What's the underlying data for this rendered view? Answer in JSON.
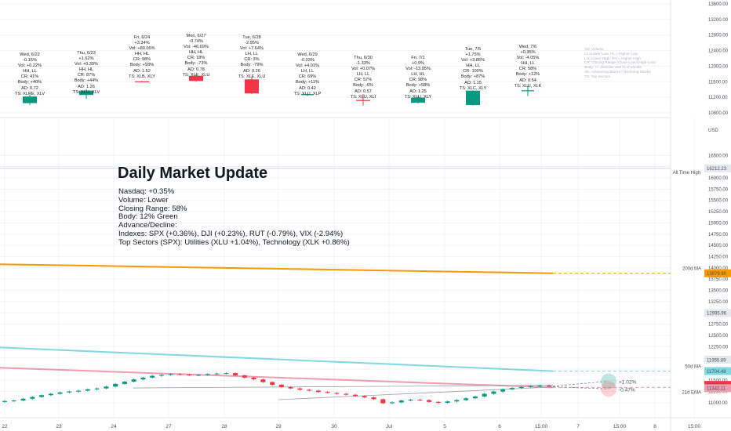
{
  "daily_cards": [
    {
      "lines": [
        "Wed, 6/22",
        "-0.15%",
        "Vol: +0.22%",
        "HH, LL",
        "CR: 41%",
        "Body: +40%",
        "AD: 0.72",
        "TS: XLRE, XLV"
      ]
    },
    {
      "lines": [
        "Thu, 6/23",
        "+1.62%",
        "Vol: +0.39%",
        "HH, HL",
        "CR: 87%",
        "Body: +44%",
        "AD: 1.26",
        "TS: XLU, XLV"
      ]
    },
    {
      "lines": [
        "Fri, 6/24",
        "+3.34%",
        "Vol: +80.06%",
        "HH, HL",
        "CR: 98%",
        "Body: +93%",
        "AD: 1.52",
        "TS: XLB, XLY"
      ]
    },
    {
      "lines": [
        "Mon, 6/27",
        "-0.74%",
        "Vol: -46.69%",
        "HH, HL",
        "CR: 18%",
        "Body: -73%",
        "AD: 0.78",
        "TS: XLE, XLU"
      ]
    },
    {
      "lines": [
        "Tue, 6/28",
        "-2.95%",
        "Vol: +7.64%",
        "LH, LL",
        "CR: 3%",
        "Body: -79%",
        "AD: 0.26",
        "TS: XLE, XLU"
      ]
    },
    {
      "lines": [
        "Wed, 6/29",
        "-0.03%",
        "Vol: +4.01%",
        "LH, LL",
        "CR: 69%",
        "Body: +11%",
        "AD: 0.42",
        "TS: XLU, XLP"
      ]
    },
    {
      "lines": [
        "Thu, 6/30",
        "-1.33%",
        "Vol: +0.07%",
        "LH, LL",
        "CR: 57%",
        "Body: -6%",
        "AD: 0.57",
        "TS: XLU, XLI"
      ]
    },
    {
      "lines": [
        "Fri, 7/1",
        "+0.9%",
        "Vol: -13.95%",
        "LH, HL",
        "CR: 98%",
        "Body: +58%",
        "AD: 1.25",
        "TS: XLU, XLY"
      ]
    },
    {
      "lines": [
        "Tue, 7/5",
        "+1.75%",
        "Vol: +3.86%",
        "HH, LL",
        "CR: 100%",
        "Body: +87%",
        "AD: 1.15",
        "TS: XLC, XLY"
      ]
    },
    {
      "lines": [
        "Wed, 7/6",
        "+0.35%",
        "Vol: -4.05%",
        "HH, LL",
        "CR: 58%",
        "Body: +12%",
        "AD: 0.54",
        "TS: XLU, XLK"
      ]
    }
  ],
  "legend": [
    "Vol: Volume",
    "LL=Lower Low, HL = Higher Low",
    "LH=Lower High, HH = Higher High",
    "CR: Closing Range (Close-Low)/(High-Low)",
    "Body: +/- direction and % of candle",
    "AD: Advancing Stocks / Declining Stocks",
    "TS: Top Sectors"
  ],
  "update": {
    "title": "Daily Market Update",
    "lines": [
      "Nasdaq: +0.35%",
      "Volume: Lower",
      "Closing Range: 58%",
      "Body: 12% Green",
      "Advance/Decline:",
      "Indexes: SPX (+0.36%), DJI (+0.23%), RUT (-0.79%), VIX (-2.94%)",
      "Top Sectors (SPX): Utilities (XLU +1.04%), Technology (XLK +0.86%)"
    ]
  },
  "chart_data": {
    "type": "candlestick",
    "top_panel": {
      "yaxis_ticks": [
        10800,
        11200,
        11600,
        12000,
        12400,
        12800,
        13200,
        13600
      ],
      "candles": [
        {
          "date": "6/22",
          "open": 11050,
          "high": 11270,
          "low": 11000,
          "close": 11220
        },
        {
          "date": "6/23",
          "open": 11260,
          "high": 11410,
          "low": 11160,
          "close": 11370
        },
        {
          "date": "6/24",
          "open": 11610,
          "high": 11620,
          "low": 11580,
          "close": 11605
        },
        {
          "date": "6/27",
          "open": 11750,
          "high": 11790,
          "low": 11600,
          "close": 11620
        },
        {
          "date": "6/28",
          "open": 11660,
          "high": 11720,
          "low": 11280,
          "close": 11300
        },
        {
          "date": "6/29",
          "open": 11270,
          "high": 11300,
          "low": 11230,
          "close": 11280
        },
        {
          "date": "6/30",
          "open": 11130,
          "high": 11280,
          "low": 10990,
          "close": 11120
        },
        {
          "date": "7/1",
          "open": 11060,
          "high": 11230,
          "low": 11040,
          "close": 11190
        },
        {
          "date": "7/5",
          "open": 11000,
          "high": 11380,
          "low": 10990,
          "close": 11370
        },
        {
          "date": "7/6",
          "open": 11370,
          "high": 11510,
          "low": 11230,
          "close": 11380
        }
      ]
    },
    "main_panel": {
      "yaxis_unit": "USD",
      "yaxis_ticks": [
        11000,
        11250,
        11500,
        11750,
        12000,
        12250,
        12500,
        12750,
        13000,
        13250,
        13500,
        13750,
        14000,
        14250,
        14500,
        14750,
        15000,
        15250,
        15500,
        15750,
        16000,
        16250,
        16500
      ],
      "x_ticks": [
        "22",
        "23",
        "24",
        "27",
        "28",
        "29",
        "30",
        "Jul",
        "5",
        "6",
        "15:00",
        "7",
        "15:00",
        "8",
        "15:00"
      ],
      "labels": {
        "all_time_high": "All Time High",
        "ma200": "200d MA",
        "ma50": "50d MA",
        "ema21": "21d EMA"
      },
      "price_labels": {
        "ath": "16212.23",
        "ma200": "13879.90",
        "p1": "12995.96",
        "p2": "11955.89",
        "ma50": "11704.48",
        "last": "11361.86",
        "ema21": "11342.11"
      },
      "ath": 16212.23,
      "ma200": [
        14080,
        13880
      ],
      "ma50": [
        12230,
        11704.48
      ],
      "ema21": [
        11780,
        11342.11
      ],
      "price_series": [
        11040,
        11050,
        11090,
        11130,
        11170,
        11200,
        11230,
        11250,
        11270,
        11300,
        11320,
        11360,
        11420,
        11470,
        11520,
        11560,
        11600,
        11620,
        11640,
        11630,
        11610,
        11620,
        11640,
        11650,
        11660,
        11610,
        11560,
        11520,
        11460,
        11400,
        11350,
        11320,
        11290,
        11270,
        11240,
        11220,
        11200,
        11180,
        11150,
        11120,
        11080,
        10990,
        11010,
        11050,
        11070,
        11060,
        11020,
        11000,
        11030,
        11060,
        11100,
        11140,
        11200,
        11250,
        11300,
        11330,
        11350,
        11370,
        11380,
        11362
      ],
      "annotations": {
        "up": "+1.02%",
        "down": "-0.47%"
      }
    }
  }
}
